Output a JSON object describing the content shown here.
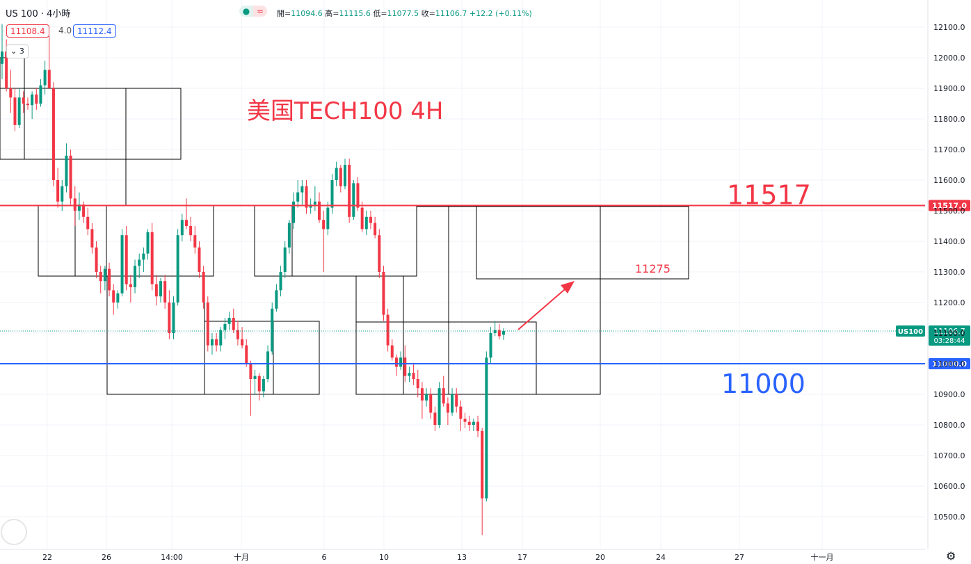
{
  "header": {
    "symbol": "US 100",
    "separator": "·",
    "timeframe": "4小時",
    "ohlc": {
      "open_label": "開=",
      "open": "11094.6",
      "high_label": "高=",
      "high": "11115.6",
      "low_label": "低=",
      "low": "11077.5",
      "close_label": "收=",
      "close": "11106.7",
      "change": "+12.2 (+0.11%)"
    },
    "sell_price": "11108.4",
    "spread": "4.0",
    "buy_price": "11112.4",
    "indicators_toggle": "3",
    "pill_glyph": "≈"
  },
  "colors": {
    "up": "#089981",
    "down": "#f23645",
    "resistance": "#f23645",
    "support": "#2962ff",
    "grid": "#f0f3fa",
    "box": "#000000"
  },
  "chart_data": {
    "type": "candlestick",
    "title": "美国TECH100 4H",
    "xlabel": "",
    "ylabel": "",
    "ylim": [
      10400,
      12150
    ],
    "y_ticks": [
      12100,
      12000,
      11900,
      11800,
      11700,
      11600,
      11500,
      11400,
      11300,
      11200,
      11100,
      11000,
      10900,
      10800,
      10700,
      10600,
      10500
    ],
    "x_tick_labels": [
      "22",
      "26",
      "14:00",
      "十月",
      "6",
      "10",
      "13",
      "17",
      "20",
      "24",
      "27",
      "十一月"
    ],
    "horizontal_levels": [
      {
        "value": 11517,
        "label": "11517",
        "axis_label": "11517.0",
        "color": "#f23645"
      },
      {
        "value": 11000,
        "label": "11000",
        "axis_label": "11000.0",
        "color": "#2962ff"
      }
    ],
    "current_price": {
      "value": 11106.7,
      "tag": "US100",
      "price_label": "11106.7",
      "countdown": "03:28:44"
    },
    "target_annotation": {
      "label": "11275",
      "value": 11275
    },
    "candles": [
      {
        "o": 11980,
        "h": 12110,
        "l": 11930,
        "c": 12020
      },
      {
        "o": 12020,
        "h": 12060,
        "l": 11890,
        "c": 11900
      },
      {
        "o": 11900,
        "h": 11960,
        "l": 11820,
        "c": 11870
      },
      {
        "o": 11870,
        "h": 11900,
        "l": 11760,
        "c": 11780
      },
      {
        "o": 11780,
        "h": 11900,
        "l": 11770,
        "c": 11870
      },
      {
        "o": 11870,
        "h": 11890,
        "l": 11820,
        "c": 11850
      },
      {
        "o": 11850,
        "h": 11870,
        "l": 11830,
        "c": 11845
      },
      {
        "o": 11845,
        "h": 11890,
        "l": 11800,
        "c": 11880
      },
      {
        "o": 11880,
        "h": 11900,
        "l": 11830,
        "c": 11850
      },
      {
        "o": 11850,
        "h": 11930,
        "l": 11840,
        "c": 11910
      },
      {
        "o": 11910,
        "h": 11990,
        "l": 11880,
        "c": 11960
      },
      {
        "o": 11960,
        "h": 12070,
        "l": 11910,
        "c": 11900
      },
      {
        "o": 11900,
        "h": 11920,
        "l": 11580,
        "c": 11600
      },
      {
        "o": 11600,
        "h": 11640,
        "l": 11510,
        "c": 11530
      },
      {
        "o": 11530,
        "h": 11600,
        "l": 11500,
        "c": 11580
      },
      {
        "o": 11580,
        "h": 11720,
        "l": 11560,
        "c": 11680
      },
      {
        "o": 11680,
        "h": 11700,
        "l": 11520,
        "c": 11540
      },
      {
        "o": 11540,
        "h": 11580,
        "l": 11450,
        "c": 11500
      },
      {
        "o": 11500,
        "h": 11560,
        "l": 11470,
        "c": 11520
      },
      {
        "o": 11520,
        "h": 11530,
        "l": 11460,
        "c": 11480
      },
      {
        "o": 11480,
        "h": 11510,
        "l": 11420,
        "c": 11440
      },
      {
        "o": 11440,
        "h": 11460,
        "l": 11360,
        "c": 11380
      },
      {
        "o": 11380,
        "h": 11400,
        "l": 11280,
        "c": 11300
      },
      {
        "o": 11300,
        "h": 11320,
        "l": 11230,
        "c": 11270
      },
      {
        "o": 11270,
        "h": 11320,
        "l": 11240,
        "c": 11310
      },
      {
        "o": 11310,
        "h": 11330,
        "l": 11220,
        "c": 11240
      },
      {
        "o": 11240,
        "h": 11260,
        "l": 11160,
        "c": 11200
      },
      {
        "o": 11200,
        "h": 11240,
        "l": 11180,
        "c": 11230
      },
      {
        "o": 11230,
        "h": 11440,
        "l": 11220,
        "c": 11420
      },
      {
        "o": 11420,
        "h": 11450,
        "l": 11240,
        "c": 11260
      },
      {
        "o": 11260,
        "h": 11290,
        "l": 11200,
        "c": 11250
      },
      {
        "o": 11250,
        "h": 11340,
        "l": 11230,
        "c": 11320
      },
      {
        "o": 11320,
        "h": 11360,
        "l": 11280,
        "c": 11340
      },
      {
        "o": 11340,
        "h": 11380,
        "l": 11300,
        "c": 11360
      },
      {
        "o": 11360,
        "h": 11440,
        "l": 11340,
        "c": 11430
      },
      {
        "o": 11430,
        "h": 11460,
        "l": 11240,
        "c": 11260
      },
      {
        "o": 11260,
        "h": 11290,
        "l": 11190,
        "c": 11220
      },
      {
        "o": 11220,
        "h": 11280,
        "l": 11200,
        "c": 11270
      },
      {
        "o": 11270,
        "h": 11290,
        "l": 11180,
        "c": 11200
      },
      {
        "o": 11200,
        "h": 11240,
        "l": 11080,
        "c": 11100
      },
      {
        "o": 11100,
        "h": 11220,
        "l": 11080,
        "c": 11200
      },
      {
        "o": 11200,
        "h": 11440,
        "l": 11190,
        "c": 11420
      },
      {
        "o": 11420,
        "h": 11490,
        "l": 11400,
        "c": 11470
      },
      {
        "o": 11470,
        "h": 11540,
        "l": 11440,
        "c": 11450
      },
      {
        "o": 11450,
        "h": 11480,
        "l": 11400,
        "c": 11420
      },
      {
        "o": 11420,
        "h": 11450,
        "l": 11360,
        "c": 11380
      },
      {
        "o": 11380,
        "h": 11400,
        "l": 11280,
        "c": 11300
      },
      {
        "o": 11300,
        "h": 11320,
        "l": 11180,
        "c": 11200
      },
      {
        "o": 11200,
        "h": 11220,
        "l": 11040,
        "c": 11060
      },
      {
        "o": 11060,
        "h": 11100,
        "l": 11030,
        "c": 11080
      },
      {
        "o": 11080,
        "h": 11100,
        "l": 11040,
        "c": 11060
      },
      {
        "o": 11060,
        "h": 11120,
        "l": 11040,
        "c": 11110
      },
      {
        "o": 11110,
        "h": 11150,
        "l": 11080,
        "c": 11130
      },
      {
        "o": 11130,
        "h": 11170,
        "l": 11110,
        "c": 11150
      },
      {
        "o": 11150,
        "h": 11180,
        "l": 11100,
        "c": 11110
      },
      {
        "o": 11110,
        "h": 11140,
        "l": 11060,
        "c": 11080
      },
      {
        "o": 11080,
        "h": 11120,
        "l": 11050,
        "c": 11060
      },
      {
        "o": 11060,
        "h": 11080,
        "l": 10990,
        "c": 11000
      },
      {
        "o": 11000,
        "h": 11010,
        "l": 10830,
        "c": 10950
      },
      {
        "o": 10950,
        "h": 10980,
        "l": 10900,
        "c": 10960
      },
      {
        "o": 10960,
        "h": 10970,
        "l": 10880,
        "c": 10910
      },
      {
        "o": 10910,
        "h": 10960,
        "l": 10890,
        "c": 10950
      },
      {
        "o": 10950,
        "h": 11060,
        "l": 10940,
        "c": 11040
      },
      {
        "o": 11040,
        "h": 11200,
        "l": 11030,
        "c": 11180
      },
      {
        "o": 11180,
        "h": 11260,
        "l": 11170,
        "c": 11240
      },
      {
        "o": 11240,
        "h": 11320,
        "l": 11220,
        "c": 11300
      },
      {
        "o": 11300,
        "h": 11400,
        "l": 11280,
        "c": 11380
      },
      {
        "o": 11380,
        "h": 11470,
        "l": 11360,
        "c": 11460
      },
      {
        "o": 11460,
        "h": 11560,
        "l": 11440,
        "c": 11530
      },
      {
        "o": 11530,
        "h": 11600,
        "l": 11510,
        "c": 11560
      },
      {
        "o": 11560,
        "h": 11600,
        "l": 11520,
        "c": 11580
      },
      {
        "o": 11580,
        "h": 11600,
        "l": 11490,
        "c": 11510
      },
      {
        "o": 11510,
        "h": 11540,
        "l": 11490,
        "c": 11520
      },
      {
        "o": 11520,
        "h": 11580,
        "l": 11500,
        "c": 11530
      },
      {
        "o": 11530,
        "h": 11560,
        "l": 11460,
        "c": 11470
      },
      {
        "o": 11470,
        "h": 11500,
        "l": 11300,
        "c": 11440
      },
      {
        "o": 11440,
        "h": 11530,
        "l": 11420,
        "c": 11510
      },
      {
        "o": 11510,
        "h": 11620,
        "l": 11490,
        "c": 11600
      },
      {
        "o": 11600,
        "h": 11660,
        "l": 11580,
        "c": 11640
      },
      {
        "o": 11640,
        "h": 11650,
        "l": 11560,
        "c": 11580
      },
      {
        "o": 11580,
        "h": 11670,
        "l": 11570,
        "c": 11650
      },
      {
        "o": 11650,
        "h": 11670,
        "l": 11460,
        "c": 11480
      },
      {
        "o": 11480,
        "h": 11600,
        "l": 11470,
        "c": 11590
      },
      {
        "o": 11590,
        "h": 11610,
        "l": 11500,
        "c": 11510
      },
      {
        "o": 11510,
        "h": 11530,
        "l": 11430,
        "c": 11440
      },
      {
        "o": 11440,
        "h": 11500,
        "l": 11420,
        "c": 11480
      },
      {
        "o": 11480,
        "h": 11500,
        "l": 11440,
        "c": 11460
      },
      {
        "o": 11460,
        "h": 11480,
        "l": 11410,
        "c": 11420
      },
      {
        "o": 11420,
        "h": 11440,
        "l": 11280,
        "c": 11300
      },
      {
        "o": 11300,
        "h": 11320,
        "l": 11140,
        "c": 11160
      },
      {
        "o": 11160,
        "h": 11180,
        "l": 11040,
        "c": 11060
      },
      {
        "o": 11060,
        "h": 11080,
        "l": 11010,
        "c": 11020
      },
      {
        "o": 11020,
        "h": 11030,
        "l": 10960,
        "c": 10990
      },
      {
        "o": 10990,
        "h": 11040,
        "l": 10980,
        "c": 11020
      },
      {
        "o": 11020,
        "h": 11060,
        "l": 10940,
        "c": 10960
      },
      {
        "o": 10960,
        "h": 10990,
        "l": 10940,
        "c": 10970
      },
      {
        "o": 10970,
        "h": 11000,
        "l": 10930,
        "c": 10950
      },
      {
        "o": 10950,
        "h": 10980,
        "l": 10890,
        "c": 10920
      },
      {
        "o": 10920,
        "h": 10940,
        "l": 10820,
        "c": 10880
      },
      {
        "o": 10880,
        "h": 10920,
        "l": 10860,
        "c": 10900
      },
      {
        "o": 10900,
        "h": 10920,
        "l": 10820,
        "c": 10840
      },
      {
        "o": 10840,
        "h": 10860,
        "l": 10780,
        "c": 10800
      },
      {
        "o": 10800,
        "h": 10940,
        "l": 10790,
        "c": 10920
      },
      {
        "o": 10920,
        "h": 10960,
        "l": 10860,
        "c": 10870
      },
      {
        "o": 10870,
        "h": 10890,
        "l": 10800,
        "c": 10840
      },
      {
        "o": 10840,
        "h": 10920,
        "l": 10830,
        "c": 10900
      },
      {
        "o": 10900,
        "h": 10920,
        "l": 10840,
        "c": 10860
      },
      {
        "o": 10860,
        "h": 10880,
        "l": 10780,
        "c": 10820
      },
      {
        "o": 10820,
        "h": 10840,
        "l": 10790,
        "c": 10810
      },
      {
        "o": 10810,
        "h": 10830,
        "l": 10780,
        "c": 10800
      },
      {
        "o": 10800,
        "h": 10820,
        "l": 10780,
        "c": 10810
      },
      {
        "o": 10810,
        "h": 10830,
        "l": 10760,
        "c": 10780
      },
      {
        "o": 10780,
        "h": 10790,
        "l": 10440,
        "c": 10560
      },
      {
        "o": 10560,
        "h": 11040,
        "l": 10550,
        "c": 11020
      },
      {
        "o": 11020,
        "h": 11120,
        "l": 11000,
        "c": 11100
      },
      {
        "o": 11100,
        "h": 11140,
        "l": 11090,
        "c": 11110
      },
      {
        "o": 11110,
        "h": 11130,
        "l": 11080,
        "c": 11090
      },
      {
        "o": 11094.6,
        "h": 11115.6,
        "l": 11077.5,
        "c": 11106.7
      }
    ]
  }
}
